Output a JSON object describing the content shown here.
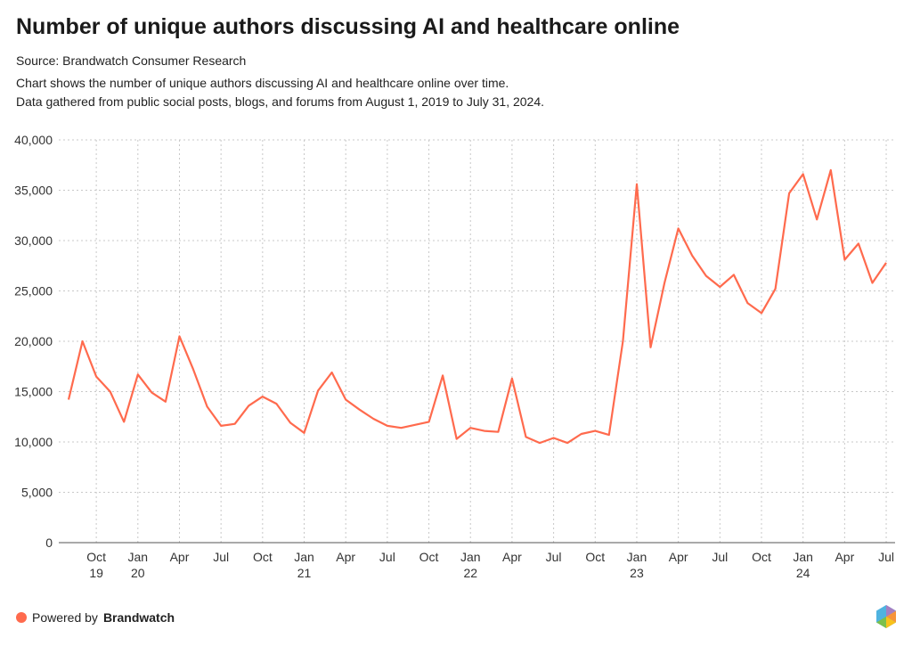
{
  "chart_data": {
    "type": "line",
    "title": "Number of unique authors discussing AI and healthcare online",
    "source": "Source: Brandwatch Consumer Research",
    "description": [
      "Chart shows the number of unique authors discussing AI and healthcare online over time.",
      "Data gathered from public social posts, blogs, and forums from August 1, 2019 to July 31, 2024."
    ],
    "xlabel": "",
    "ylabel": "",
    "ylim": [
      0,
      40000
    ],
    "yticks": [
      "0",
      "5,000",
      "10,000",
      "15,000",
      "20,000",
      "25,000",
      "30,000",
      "35,000",
      "40,000"
    ],
    "x_start": "2019-08",
    "x_ticks": [
      {
        "month_index": 2,
        "label": "Oct",
        "year": "19"
      },
      {
        "month_index": 5,
        "label": "Jan",
        "year": "20"
      },
      {
        "month_index": 8,
        "label": "Apr",
        "year": ""
      },
      {
        "month_index": 11,
        "label": "Jul",
        "year": ""
      },
      {
        "month_index": 14,
        "label": "Oct",
        "year": ""
      },
      {
        "month_index": 17,
        "label": "Jan",
        "year": "21"
      },
      {
        "month_index": 20,
        "label": "Apr",
        "year": ""
      },
      {
        "month_index": 23,
        "label": "Jul",
        "year": ""
      },
      {
        "month_index": 26,
        "label": "Oct",
        "year": ""
      },
      {
        "month_index": 29,
        "label": "Jan",
        "year": "22"
      },
      {
        "month_index": 32,
        "label": "Apr",
        "year": ""
      },
      {
        "month_index": 35,
        "label": "Jul",
        "year": ""
      },
      {
        "month_index": 38,
        "label": "Oct",
        "year": ""
      },
      {
        "month_index": 41,
        "label": "Jan",
        "year": "23"
      },
      {
        "month_index": 44,
        "label": "Apr",
        "year": ""
      },
      {
        "month_index": 47,
        "label": "Jul",
        "year": ""
      },
      {
        "month_index": 50,
        "label": "Oct",
        "year": ""
      },
      {
        "month_index": 53,
        "label": "Jan",
        "year": "24"
      },
      {
        "month_index": 56,
        "label": "Apr",
        "year": ""
      },
      {
        "month_index": 59,
        "label": "Jul",
        "year": ""
      }
    ],
    "grid": true,
    "series": [
      {
        "name": "Unique authors",
        "color": "#ff6a4d",
        "values": [
          14200,
          20000,
          16500,
          15000,
          12000,
          16700,
          14900,
          14000,
          20500,
          17200,
          13500,
          11600,
          11800,
          13600,
          14500,
          13800,
          11900,
          10900,
          15100,
          16900,
          14200,
          13200,
          12300,
          11600,
          11400,
          11700,
          12000,
          16600,
          10300,
          11400,
          11100,
          11000,
          16300,
          10500,
          9900,
          10400,
          9900,
          10800,
          11100,
          10700,
          20000,
          35600,
          19400,
          25800,
          31200,
          28500,
          26500,
          25400,
          26600,
          23800,
          22800,
          25200,
          34700,
          36600,
          32100,
          37000,
          28100,
          29700,
          25800,
          27800
        ]
      }
    ]
  },
  "footer": {
    "powered": "Powered by",
    "brand": "Brandwatch",
    "dot_color": "#ff6a4d"
  }
}
